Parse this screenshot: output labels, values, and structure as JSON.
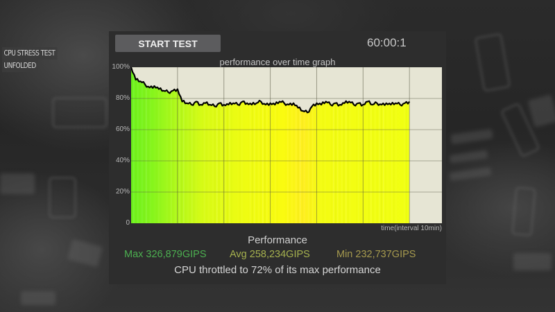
{
  "overlay": {
    "labels": [
      "CPU STRESS TEST",
      "UNFOLDED"
    ]
  },
  "toolbar": {
    "start_label": "START TEST",
    "timer": "60:00:1"
  },
  "graph": {
    "title": "performance over time graph",
    "x_label": "time(interval 10min)"
  },
  "summary": {
    "title": "Performance",
    "max": "Max 326,879GIPS",
    "avg": "Avg 258,234GIPS",
    "min": "Min 232,737GIPS",
    "throttle_message": "CPU throttled to 72% of its max performance"
  },
  "colors": {
    "max": "#4caf50",
    "avg": "#a5b14e",
    "min": "#a69a4e",
    "plot_bg": "#e6e5d4",
    "fill_start": "#77f31b",
    "fill_end": "#f0ff10",
    "line": "#000000"
  },
  "chart_data": {
    "type": "area",
    "title": "performance over time graph",
    "xlabel": "time(interval 10min)",
    "ylabel": "",
    "y_ticks": [
      "0",
      "20%",
      "40%",
      "60%",
      "80%",
      "100%"
    ],
    "ylim": [
      0,
      100
    ],
    "xlim_minutes": [
      0,
      67
    ],
    "x_grid_interval_minutes": 10,
    "grid": true,
    "legend": null,
    "x_minutes": [
      0,
      1,
      2,
      3,
      4,
      5,
      6,
      7,
      8,
      9,
      10,
      11,
      12,
      13,
      14,
      15,
      16,
      17,
      18,
      19,
      20,
      21,
      22,
      23,
      24,
      25,
      26,
      27,
      28,
      29,
      30,
      31,
      32,
      33,
      34,
      35,
      36,
      37,
      38,
      39,
      40,
      41,
      42,
      43,
      44,
      45,
      46,
      47,
      48,
      49,
      50,
      51,
      52,
      53,
      54,
      55,
      56,
      57,
      58,
      59,
      60
    ],
    "values_percent": [
      100,
      92,
      91,
      89,
      87,
      88,
      86,
      85,
      84,
      85,
      86,
      78,
      77,
      76,
      78,
      76,
      77,
      76,
      75,
      77,
      76,
      76,
      77,
      76,
      78,
      77,
      76,
      77,
      78,
      76,
      77,
      76,
      78,
      77,
      76,
      77,
      74,
      72,
      71,
      75,
      77,
      76,
      78,
      76,
      77,
      76,
      77,
      78,
      76,
      77,
      76,
      78,
      76,
      77,
      76,
      77,
      76,
      77,
      76,
      77,
      78
    ],
    "max_gips": 326879,
    "avg_gips": 258234,
    "min_gips": 232737,
    "throttled_to_percent": 72
  }
}
